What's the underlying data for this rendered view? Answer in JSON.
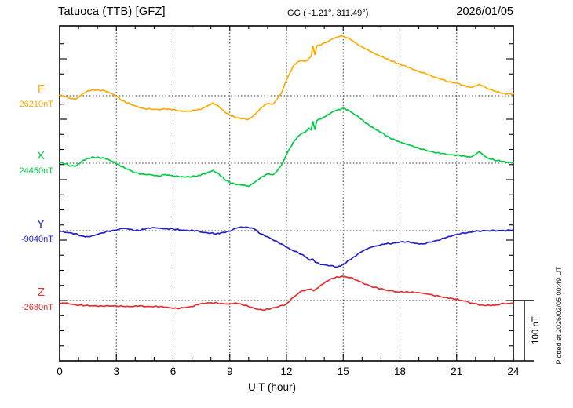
{
  "header": {
    "station": "Tatuoca (TTB)  [GFZ]",
    "coords": "GG ( -1.21°, 311.49°)",
    "date": "2026/01/05"
  },
  "footer": {
    "xaxis_label": "U T (hour)",
    "plotted_note": "Plotted at 2026/02/05 00:49 UT"
  },
  "scale_bar": {
    "label": "100 nT",
    "nT": 100
  },
  "chart_data": {
    "type": "line",
    "title": "Tatuoca (TTB) magnetogram, 2026/01/05",
    "xlabel": "U T (hour)",
    "x_range": [
      0,
      24
    ],
    "x_ticks": [
      0,
      3,
      6,
      9,
      12,
      15,
      18,
      21,
      24
    ],
    "grid": "dotted vertical lines every 3 h; dotted horizontal line at each component baseline",
    "y_scale": "100 nT reference bar at right; values are offsets (nT) from each component baseline",
    "series": [
      {
        "name": "F",
        "baseline_label": "26210nT",
        "baseline_nT": 26210,
        "color": "#FFAA00",
        "points_hour_deltaNT": [
          [
            0,
            1
          ],
          [
            0.3,
            -1
          ],
          [
            0.6,
            -5
          ],
          [
            0.9,
            -5
          ],
          [
            1.2,
            3
          ],
          [
            1.5,
            8
          ],
          [
            1.8,
            10
          ],
          [
            2.1,
            9
          ],
          [
            2.4,
            8
          ],
          [
            2.7,
            4
          ],
          [
            3,
            -1
          ],
          [
            3.3,
            -8
          ],
          [
            3.6,
            -12
          ],
          [
            4,
            -17
          ],
          [
            4.4,
            -21
          ],
          [
            4.8,
            -22
          ],
          [
            5.2,
            -23
          ],
          [
            5.6,
            -22
          ],
          [
            6,
            -23
          ],
          [
            6.3,
            -25
          ],
          [
            6.6,
            -26
          ],
          [
            7,
            -25
          ],
          [
            7.3,
            -23
          ],
          [
            7.5,
            -22
          ],
          [
            7.8,
            -17
          ],
          [
            8.1,
            -12
          ],
          [
            8.4,
            -17
          ],
          [
            8.7,
            -26
          ],
          [
            9,
            -32
          ],
          [
            9.3,
            -36
          ],
          [
            9.6,
            -38
          ],
          [
            10,
            -39
          ],
          [
            10.3,
            -32
          ],
          [
            10.6,
            -22
          ],
          [
            10.9,
            -14
          ],
          [
            11.1,
            -13
          ],
          [
            11.3,
            -14
          ],
          [
            11.5,
            -6
          ],
          [
            11.7,
            3
          ],
          [
            11.85,
            14
          ],
          [
            12,
            26
          ],
          [
            12.2,
            39
          ],
          [
            12.4,
            51
          ],
          [
            12.6,
            56
          ],
          [
            12.8,
            58
          ],
          [
            13,
            57
          ],
          [
            13.2,
            62
          ],
          [
            13.3,
            65
          ],
          [
            13.4,
            82
          ],
          [
            13.5,
            68
          ],
          [
            13.6,
            82
          ],
          [
            13.75,
            84
          ],
          [
            13.9,
            86
          ],
          [
            14.1,
            88
          ],
          [
            14.3,
            92
          ],
          [
            14.5,
            95
          ],
          [
            14.7,
            97
          ],
          [
            14.9,
            99
          ],
          [
            15.1,
            97
          ],
          [
            15.3,
            95
          ],
          [
            15.5,
            91
          ],
          [
            15.8,
            84
          ],
          [
            16.1,
            79
          ],
          [
            16.4,
            74
          ],
          [
            16.7,
            69
          ],
          [
            17,
            65
          ],
          [
            17.3,
            61
          ],
          [
            17.6,
            57
          ],
          [
            18,
            52
          ],
          [
            18.3,
            49
          ],
          [
            18.6,
            45
          ],
          [
            19,
            40
          ],
          [
            19.4,
            36
          ],
          [
            19.8,
            31
          ],
          [
            20.2,
            27
          ],
          [
            20.6,
            23
          ],
          [
            21,
            21
          ],
          [
            21.4,
            17
          ],
          [
            21.7,
            14
          ],
          [
            22,
            16
          ],
          [
            22.2,
            19
          ],
          [
            22.4,
            16
          ],
          [
            22.6,
            12
          ],
          [
            23,
            8
          ],
          [
            23.4,
            4
          ],
          [
            23.7,
            3
          ],
          [
            24,
            3
          ]
        ]
      },
      {
        "name": "X",
        "baseline_label": "24450nT",
        "baseline_nT": 24450,
        "color": "#00CC44",
        "points_hour_deltaNT": [
          [
            0,
            1
          ],
          [
            0.3,
            -1
          ],
          [
            0.6,
            -5
          ],
          [
            0.9,
            -4
          ],
          [
            1.2,
            4
          ],
          [
            1.5,
            8
          ],
          [
            1.8,
            10
          ],
          [
            2.1,
            9
          ],
          [
            2.4,
            8
          ],
          [
            2.7,
            4
          ],
          [
            3,
            -1
          ],
          [
            3.3,
            -6
          ],
          [
            3.6,
            -10
          ],
          [
            4,
            -16
          ],
          [
            4.4,
            -18
          ],
          [
            4.8,
            -19
          ],
          [
            5.2,
            -21
          ],
          [
            5.6,
            -19
          ],
          [
            6,
            -21
          ],
          [
            6.3,
            -22
          ],
          [
            6.6,
            -23
          ],
          [
            7,
            -22
          ],
          [
            7.3,
            -21
          ],
          [
            7.5,
            -19
          ],
          [
            7.8,
            -16
          ],
          [
            8.1,
            -12
          ],
          [
            8.4,
            -17
          ],
          [
            8.7,
            -26
          ],
          [
            9,
            -32
          ],
          [
            9.3,
            -35
          ],
          [
            9.6,
            -36
          ],
          [
            10,
            -38
          ],
          [
            10.3,
            -32
          ],
          [
            10.6,
            -25
          ],
          [
            10.9,
            -19
          ],
          [
            11.1,
            -18
          ],
          [
            11.3,
            -19
          ],
          [
            11.5,
            -13
          ],
          [
            11.7,
            -5
          ],
          [
            11.85,
            4
          ],
          [
            12,
            14
          ],
          [
            12.2,
            26
          ],
          [
            12.4,
            36
          ],
          [
            12.6,
            44
          ],
          [
            12.8,
            49
          ],
          [
            13,
            52
          ],
          [
            13.2,
            58
          ],
          [
            13.3,
            55
          ],
          [
            13.4,
            69
          ],
          [
            13.5,
            56
          ],
          [
            13.6,
            70
          ],
          [
            13.75,
            73
          ],
          [
            13.9,
            75
          ],
          [
            14.1,
            78
          ],
          [
            14.3,
            82
          ],
          [
            14.5,
            86
          ],
          [
            14.7,
            88
          ],
          [
            14.9,
            90
          ],
          [
            15.1,
            90
          ],
          [
            15.3,
            87
          ],
          [
            15.5,
            83
          ],
          [
            15.8,
            77
          ],
          [
            16.1,
            69
          ],
          [
            16.4,
            62
          ],
          [
            16.7,
            56
          ],
          [
            17,
            51
          ],
          [
            17.3,
            45
          ],
          [
            17.6,
            40
          ],
          [
            18,
            35
          ],
          [
            18.3,
            32
          ],
          [
            18.6,
            29
          ],
          [
            19,
            25
          ],
          [
            19.4,
            21
          ],
          [
            19.8,
            18
          ],
          [
            20.2,
            16
          ],
          [
            20.6,
            14
          ],
          [
            21,
            13
          ],
          [
            21.4,
            12
          ],
          [
            21.7,
            10
          ],
          [
            22,
            14
          ],
          [
            22.2,
            19
          ],
          [
            22.4,
            14
          ],
          [
            22.6,
            9
          ],
          [
            23,
            5
          ],
          [
            23.4,
            3
          ],
          [
            23.7,
            1
          ],
          [
            24,
            1
          ]
        ]
      },
      {
        "name": "Y",
        "baseline_label": "-9040nT",
        "baseline_nT": -9040,
        "color": "#2222CC",
        "points_hour_deltaNT": [
          [
            0,
            -1
          ],
          [
            0.4,
            -3
          ],
          [
            0.8,
            -5
          ],
          [
            1.2,
            -9
          ],
          [
            1.5,
            -10
          ],
          [
            1.8,
            -8
          ],
          [
            2.2,
            -4
          ],
          [
            2.6,
            -1
          ],
          [
            3,
            1
          ],
          [
            3.3,
            4
          ],
          [
            3.6,
            3
          ],
          [
            4,
            0
          ],
          [
            4.3,
            1
          ],
          [
            4.6,
            4
          ],
          [
            5,
            5
          ],
          [
            5.3,
            4
          ],
          [
            5.6,
            3
          ],
          [
            6,
            3
          ],
          [
            6.4,
            1
          ],
          [
            6.8,
            0
          ],
          [
            7.2,
            0
          ],
          [
            7.6,
            -3
          ],
          [
            8,
            -4
          ],
          [
            8.3,
            -5
          ],
          [
            8.6,
            -3
          ],
          [
            9,
            -1
          ],
          [
            9.3,
            4
          ],
          [
            9.6,
            6
          ],
          [
            10,
            5
          ],
          [
            10.3,
            3
          ],
          [
            10.6,
            -5
          ],
          [
            11,
            -10
          ],
          [
            11.4,
            -17
          ],
          [
            11.8,
            -23
          ],
          [
            12.2,
            -31
          ],
          [
            12.6,
            -36
          ],
          [
            13,
            -43
          ],
          [
            13.25,
            -49
          ],
          [
            13.4,
            -47
          ],
          [
            13.55,
            -53
          ],
          [
            13.9,
            -56
          ],
          [
            14.3,
            -58
          ],
          [
            14.7,
            -60
          ],
          [
            15,
            -56
          ],
          [
            15.3,
            -49
          ],
          [
            15.6,
            -43
          ],
          [
            15.9,
            -36
          ],
          [
            16.2,
            -31
          ],
          [
            16.5,
            -27
          ],
          [
            16.8,
            -25
          ],
          [
            17.2,
            -22
          ],
          [
            17.6,
            -21
          ],
          [
            18,
            -19
          ],
          [
            18.4,
            -18
          ],
          [
            18.8,
            -21
          ],
          [
            19.2,
            -22
          ],
          [
            19.6,
            -19
          ],
          [
            20,
            -16
          ],
          [
            20.4,
            -12
          ],
          [
            20.8,
            -8
          ],
          [
            21.2,
            -5
          ],
          [
            21.6,
            -3
          ],
          [
            22,
            -1
          ],
          [
            22.5,
            0
          ],
          [
            23,
            0
          ],
          [
            23.5,
            0
          ],
          [
            24,
            1
          ]
        ]
      },
      {
        "name": "Z",
        "baseline_label": "-2680nT",
        "baseline_nT": -2680,
        "color": "#E62E2E",
        "points_hour_deltaNT": [
          [
            0,
            -5
          ],
          [
            0.3,
            -4
          ],
          [
            0.6,
            -6
          ],
          [
            1,
            -8
          ],
          [
            1.4,
            -8
          ],
          [
            1.8,
            -9
          ],
          [
            2.2,
            -9
          ],
          [
            2.6,
            -9
          ],
          [
            3,
            -9
          ],
          [
            3.4,
            -10
          ],
          [
            3.8,
            -10
          ],
          [
            4.2,
            -9
          ],
          [
            4.6,
            -10
          ],
          [
            5,
            -10
          ],
          [
            5.4,
            -10
          ],
          [
            5.8,
            -12
          ],
          [
            6.2,
            -13
          ],
          [
            6.6,
            -12
          ],
          [
            7,
            -10
          ],
          [
            7.4,
            -6
          ],
          [
            7.8,
            -4
          ],
          [
            8.2,
            -4
          ],
          [
            8.6,
            -5
          ],
          [
            9,
            -6
          ],
          [
            9.3,
            -4
          ],
          [
            9.6,
            -6
          ],
          [
            10,
            -10
          ],
          [
            10.4,
            -14
          ],
          [
            10.8,
            -16
          ],
          [
            11.2,
            -13
          ],
          [
            11.6,
            -10
          ],
          [
            12,
            -6
          ],
          [
            12.3,
            4
          ],
          [
            12.8,
            16
          ],
          [
            13.3,
            19
          ],
          [
            13.45,
            16
          ],
          [
            13.9,
            27
          ],
          [
            14.35,
            36
          ],
          [
            14.9,
            40
          ],
          [
            15.4,
            38
          ],
          [
            15.9,
            31
          ],
          [
            16.5,
            23
          ],
          [
            16.8,
            21
          ],
          [
            17.3,
            17
          ],
          [
            17.9,
            14
          ],
          [
            18.3,
            14
          ],
          [
            19,
            13
          ],
          [
            19.6,
            10
          ],
          [
            20.2,
            6
          ],
          [
            20.8,
            3
          ],
          [
            21.3,
            0
          ],
          [
            21.9,
            -5
          ],
          [
            22.4,
            -8
          ],
          [
            23,
            -8
          ],
          [
            23.5,
            -5
          ],
          [
            24,
            -5
          ]
        ]
      }
    ]
  }
}
